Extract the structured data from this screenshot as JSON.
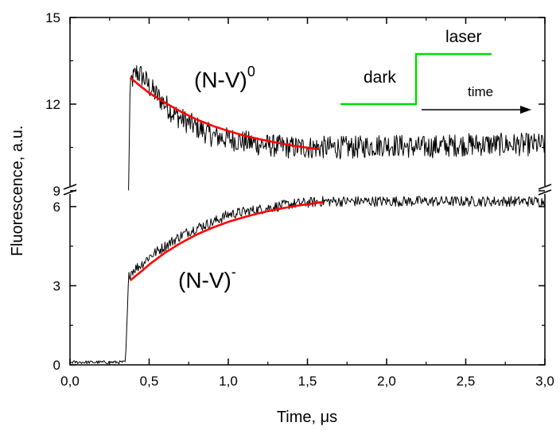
{
  "chart_data": {
    "type": "line",
    "xlabel": "Time, μs",
    "ylabel": "Fluorescence, a.u.",
    "xlim": [
      0.0,
      3.0
    ],
    "x_ticks": [
      "0,0",
      "0,5",
      "1,0",
      "1,5",
      "2,0",
      "2,5",
      "3,0"
    ],
    "x_tick_values": [
      0.0,
      0.5,
      1.0,
      1.5,
      2.0,
      2.5,
      3.0
    ],
    "y_lower": {
      "range": [
        0,
        6.6
      ],
      "ticks": [
        "0",
        "3",
        "6"
      ],
      "tick_values": [
        0,
        3,
        6
      ]
    },
    "y_upper": {
      "range": [
        9,
        15
      ],
      "ticks": [
        "9",
        "12",
        "15"
      ],
      "tick_values": [
        9,
        12,
        15
      ]
    },
    "y_axis_break": true,
    "series": [
      {
        "label": "(N-V)0",
        "color": "#000000",
        "x": [
          0.37,
          0.38,
          0.4,
          0.42,
          0.45,
          0.48,
          0.5,
          0.55,
          0.6,
          0.65,
          0.7,
          0.8,
          0.9,
          1.0,
          1.1,
          1.2,
          1.4,
          1.6,
          1.8,
          2.0,
          2.2,
          2.5,
          2.8,
          3.0
        ],
        "y": [
          9.0,
          12.8,
          12.9,
          13.1,
          13.0,
          12.8,
          12.6,
          12.3,
          12.0,
          11.7,
          11.5,
          11.2,
          10.9,
          10.8,
          10.7,
          10.6,
          10.5,
          10.5,
          10.5,
          10.6,
          10.5,
          10.6,
          10.6,
          10.6
        ],
        "noise": 0.4
      },
      {
        "label": "(N-V)-",
        "color": "#000000",
        "x": [
          0.0,
          0.1,
          0.2,
          0.3,
          0.35,
          0.36,
          0.37,
          0.38,
          0.4,
          0.45,
          0.5,
          0.6,
          0.7,
          0.8,
          0.9,
          1.0,
          1.2,
          1.4,
          1.6,
          1.8,
          2.0,
          2.2,
          2.5,
          2.8,
          3.0
        ],
        "y": [
          0.1,
          0.1,
          0.1,
          0.1,
          0.1,
          1.5,
          3.3,
          3.5,
          3.6,
          3.8,
          4.1,
          4.5,
          4.9,
          5.2,
          5.4,
          5.7,
          5.9,
          6.1,
          6.2,
          6.2,
          6.2,
          6.2,
          6.2,
          6.2,
          6.2
        ],
        "noise": 0.2
      },
      {
        "label": "fit (N-V)0",
        "color": "#ff0000",
        "x": [
          0.38,
          0.45,
          0.5,
          0.6,
          0.7,
          0.8,
          0.9,
          1.0,
          1.1,
          1.2,
          1.3,
          1.4,
          1.5,
          1.57
        ],
        "y": [
          12.92,
          12.6,
          12.39,
          12.05,
          11.74,
          11.47,
          11.25,
          11.07,
          10.91,
          10.78,
          10.67,
          10.57,
          10.49,
          10.44
        ]
      },
      {
        "label": "fit (N-V)-",
        "color": "#ff0000",
        "x": [
          0.38,
          0.45,
          0.5,
          0.6,
          0.7,
          0.8,
          0.9,
          1.0,
          1.1,
          1.2,
          1.3,
          1.4,
          1.5,
          1.6
        ],
        "y": [
          3.2,
          3.54,
          3.8,
          4.25,
          4.62,
          4.94,
          5.2,
          5.42,
          5.6,
          5.76,
          5.89,
          6.0,
          6.09,
          6.17
        ]
      }
    ],
    "annotations": [
      {
        "kind": "label",
        "text_main": "(N-V)",
        "text_sup": "0"
      },
      {
        "kind": "label",
        "text_main": "(N-V)",
        "text_sup": "-"
      },
      {
        "kind": "inset-text",
        "text": "dark"
      },
      {
        "kind": "inset-text",
        "text": "laser"
      },
      {
        "kind": "inset-text",
        "text": "time"
      }
    ],
    "inset_colors": {
      "pulse": "#00dd00",
      "arrow": "#000000"
    }
  }
}
